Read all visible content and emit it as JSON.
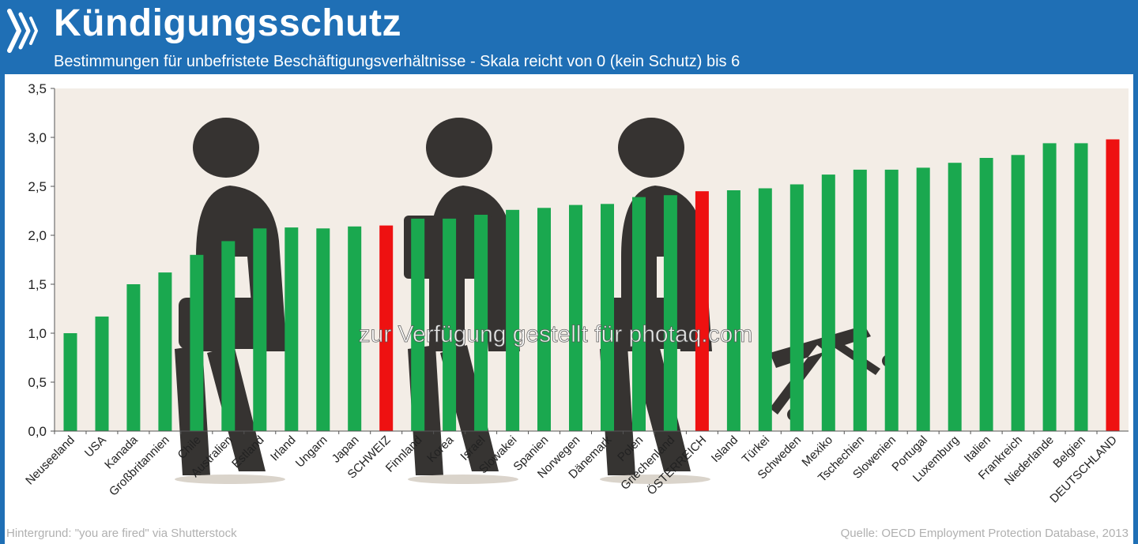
{
  "header": {
    "title": "Kündigungsschutz",
    "subtitle": "Bestimmungen für unbefristete Beschäftigungsverhältnisse - Skala reicht von 0 (kein Schutz) bis 6"
  },
  "footer": {
    "left": "Hintergrund: \"you are fired\" via Shutterstock",
    "right": "Quelle: OECD Employment Protection Database, 2013"
  },
  "watermark": "zur Verfügung gestellt für photaq.com",
  "colors": {
    "header_bg": "#1f6fb5",
    "bar_default": "#1aa84f",
    "bar_highlight": "#ee1111",
    "plot_bg": "#f3ede6",
    "silhouette": "#2c2a28"
  },
  "chart_data": {
    "type": "bar",
    "ylim": [
      0,
      3.5
    ],
    "yticks": [
      "0,0",
      "0,5",
      "1,0",
      "1,5",
      "2,0",
      "2,5",
      "3,0",
      "3,5"
    ],
    "grid": false,
    "categories": [
      "Neuseeland",
      "USA",
      "Kanada",
      "Großbritannien",
      "Chile",
      "Australien",
      "Estland",
      "Irland",
      "Ungarn",
      "Japan",
      "SCHWEIZ",
      "Finnland",
      "Korea",
      "Israel",
      "Slowakei",
      "Spanien",
      "Norwegen",
      "Dänemark",
      "Polen",
      "Griechenland",
      "ÖSTERREICH",
      "Island",
      "Türkei",
      "Schweden",
      "Mexiko",
      "Tschechien",
      "Slowenien",
      "Portugal",
      "Luxemburg",
      "Italien",
      "Frankreich",
      "Niederlande",
      "Belgien",
      "DEUTSCHLAND"
    ],
    "values": [
      1.0,
      1.17,
      1.5,
      1.62,
      1.8,
      1.94,
      2.07,
      2.08,
      2.07,
      2.09,
      2.1,
      2.17,
      2.17,
      2.21,
      2.26,
      2.28,
      2.31,
      2.32,
      2.39,
      2.41,
      2.45,
      2.46,
      2.48,
      2.52,
      2.62,
      2.67,
      2.67,
      2.69,
      2.74,
      2.79,
      2.82,
      2.94,
      2.94,
      2.98
    ],
    "highlighted": [
      "SCHWEIZ",
      "ÖSTERREICH",
      "DEUTSCHLAND"
    ]
  }
}
